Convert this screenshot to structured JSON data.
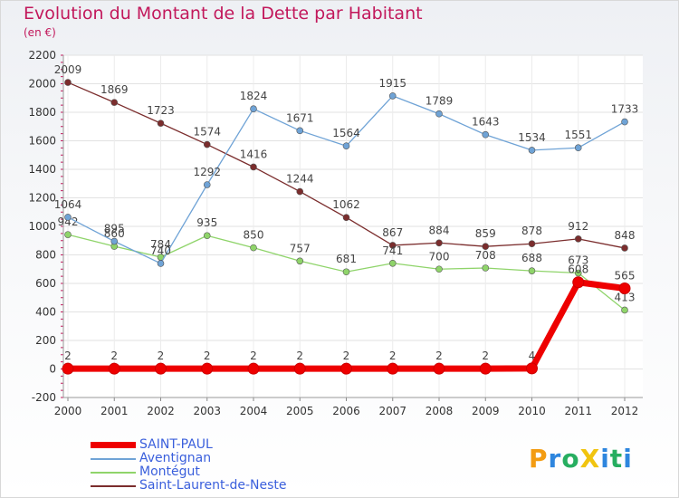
{
  "title": "Evolution du Montant de la Dette par Habitant",
  "subtitle": "(en €)",
  "logo": {
    "text": "Proxiti",
    "letters": [
      {
        "ch": "P",
        "color": "#f39c12"
      },
      {
        "ch": "r",
        "color": "#2e86de"
      },
      {
        "ch": "o",
        "color": "#27ae60"
      },
      {
        "ch": "X",
        "color": "#f1c40f"
      },
      {
        "ch": "i",
        "color": "#2e86de"
      },
      {
        "ch": "t",
        "color": "#27ae60"
      },
      {
        "ch": "i",
        "color": "#2e86de"
      }
    ]
  },
  "chart_data": {
    "type": "line",
    "x": [
      "2000",
      "2001",
      "2002",
      "2003",
      "2004",
      "2005",
      "2006",
      "2007",
      "2008",
      "2009",
      "2010",
      "2011",
      "2012"
    ],
    "ylim": [
      -200,
      2200
    ],
    "yticks": [
      -200,
      0,
      200,
      400,
      600,
      800,
      1000,
      1200,
      1400,
      1600,
      1800,
      2000,
      2200
    ],
    "grid": true,
    "legend_position": "bottom-left",
    "series": [
      {
        "name": "Saint-Laurent-de-Neste",
        "color": "#7b2d2d",
        "width": 1.3,
        "values": [
          2009,
          1869,
          1723,
          1574,
          1416,
          1244,
          1062,
          867,
          884,
          859,
          878,
          912,
          848
        ],
        "labels": [
          "2009",
          "1869",
          "1723",
          "1574",
          "1416",
          "1244",
          "1062",
          "867",
          "884",
          "859",
          "878",
          "912",
          "848"
        ]
      },
      {
        "name": "Montégut",
        "color": "#8fd46a",
        "width": 1.3,
        "values": [
          942,
          860,
          784,
          935,
          850,
          757,
          681,
          741,
          700,
          708,
          688,
          673,
          413
        ],
        "labels": [
          "942",
          "860",
          "784",
          "935",
          "850",
          "757",
          "681",
          "741",
          "700",
          "708",
          "688",
          "673",
          "413"
        ]
      },
      {
        "name": "Aventignan",
        "color": "#6fa3d6",
        "width": 1.3,
        "values": [
          1064,
          895,
          740,
          1292,
          1824,
          1671,
          1564,
          1915,
          1789,
          1643,
          1534,
          1551,
          1733
        ],
        "labels": [
          "1064",
          "895",
          "740",
          "1292",
          "1824",
          "1671",
          "1564",
          "1915",
          "1789",
          "1643",
          "1534",
          "1551",
          "1733"
        ]
      },
      {
        "name": "SAINT-PAUL",
        "color": "#ee0000",
        "width": 7,
        "values": [
          2,
          2,
          2,
          2,
          2,
          2,
          2,
          2,
          2,
          2,
          4,
          608,
          565
        ],
        "labels": [
          "2",
          "2",
          "2",
          "2",
          "2",
          "2",
          "2",
          "2",
          "2",
          "2",
          "4",
          "608",
          "565"
        ]
      }
    ]
  }
}
